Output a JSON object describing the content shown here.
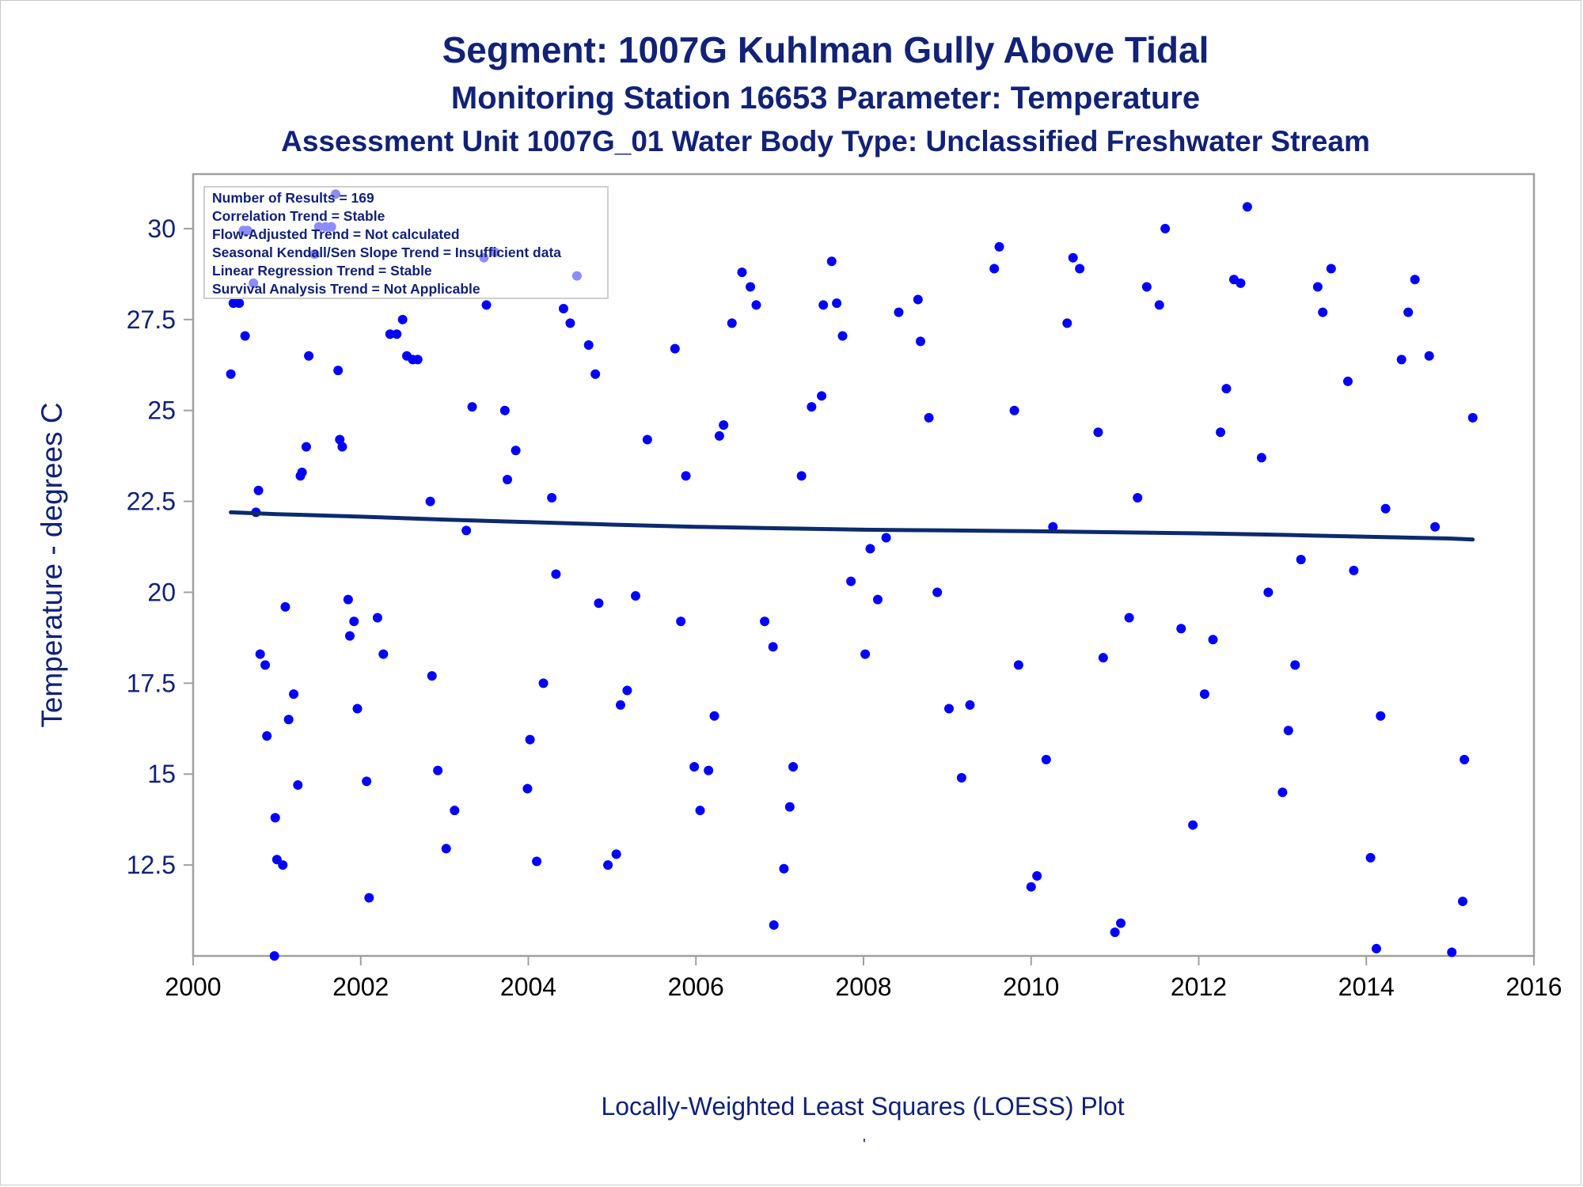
{
  "titles": {
    "line1": "Segment: 1007G  Kuhlman Gully Above Tidal",
    "line2": "Monitoring Station 16653 Parameter: Temperature",
    "line3": "Assessment Unit 1007G_01   Water Body Type: Unclassified Freshwater Stream"
  },
  "footnote": "Locally-Weighted Least Squares (LOESS) Plot",
  "footnote_mark": "'",
  "colors": {
    "text": "#112277",
    "points": "#0000ff",
    "trend": "#0c2a6e",
    "frame": "#a0a0a0"
  },
  "chart_data": {
    "type": "scatter",
    "ylabel": "Temperature - degrees C",
    "xlabel": "",
    "xlim": [
      2000,
      2016
    ],
    "ylim": [
      10.0,
      31.5
    ],
    "x_ticks": [
      "2000",
      "2002",
      "2004",
      "2006",
      "2008",
      "2010",
      "2012",
      "2014",
      "2016"
    ],
    "y_ticks": [
      "12.5",
      "15",
      "17.5",
      "20",
      "22.5",
      "25",
      "27.5",
      "30"
    ],
    "legend": {
      "position": "top-left",
      "lines": [
        "Number of Results = 169",
        "Correlation Trend = Stable",
        "Flow-Adjusted Trend = Not calculated",
        "Seasonal Kendall/Sen Slope Trend = Insufficient data",
        "Linear Regression Trend = Stable",
        "Survival Analysis Trend = Not Applicable"
      ]
    },
    "series": [
      {
        "kind": "points",
        "x": [
          2000.45,
          2000.48,
          2000.55,
          2000.62,
          2000.6,
          2000.65,
          2000.72,
          2000.75,
          2000.78,
          2000.8,
          2000.86,
          2000.88,
          2000.97,
          2000.98,
          2001.0,
          2001.07,
          2001.1,
          2001.14,
          2001.2,
          2001.25,
          2001.28,
          2001.3,
          2001.35,
          2001.38,
          2001.45,
          2001.5,
          2001.58,
          2001.65,
          2001.7,
          2001.73,
          2001.75,
          2001.78,
          2001.85,
          2001.87,
          2001.92,
          2001.96,
          2002.07,
          2002.1,
          2002.2,
          2002.27,
          2002.35,
          2002.43,
          2002.5,
          2002.55,
          2002.62,
          2002.68,
          2002.83,
          2002.85,
          2002.92,
          2003.02,
          2003.12,
          2003.26,
          2003.33,
          2003.47,
          2003.5,
          2003.6,
          2003.72,
          2003.75,
          2003.85,
          2003.99,
          2004.02,
          2004.1,
          2004.18,
          2004.28,
          2004.33,
          2004.42,
          2004.5,
          2004.58,
          2004.72,
          2004.8,
          2004.84,
          2004.95,
          2005.05,
          2005.1,
          2005.18,
          2005.28,
          2005.42,
          2005.75,
          2005.82,
          2005.88,
          2005.98,
          2006.05,
          2006.15,
          2006.22,
          2006.28,
          2006.33,
          2006.43,
          2006.55,
          2006.65,
          2006.72,
          2006.82,
          2006.92,
          2006.93,
          2007.05,
          2007.12,
          2007.16,
          2007.26,
          2007.38,
          2007.5,
          2007.52,
          2007.62,
          2007.68,
          2007.75,
          2007.85,
          2008.02,
          2008.08,
          2008.17,
          2008.27,
          2008.42,
          2008.65,
          2008.68,
          2008.78,
          2008.88,
          2009.02,
          2009.17,
          2009.27,
          2009.56,
          2009.62,
          2009.8,
          2009.85,
          2010.0,
          2010.07,
          2010.18,
          2010.26,
          2010.43,
          2010.5,
          2010.58,
          2010.8,
          2010.86,
          2011.0,
          2011.07,
          2011.17,
          2011.27,
          2011.38,
          2011.53,
          2011.6,
          2011.79,
          2011.93,
          2012.07,
          2012.17,
          2012.26,
          2012.33,
          2012.42,
          2012.5,
          2012.58,
          2012.75,
          2012.83,
          2013.0,
          2013.07,
          2013.15,
          2013.22,
          2013.42,
          2013.48,
          2013.58,
          2013.78,
          2013.85,
          2014.05,
          2014.12,
          2014.17,
          2014.23,
          2014.42,
          2014.5,
          2014.58,
          2014.75,
          2014.82,
          2015.02,
          2015.15,
          2015.17,
          2015.27
        ],
        "y": [
          26.0,
          27.95,
          27.95,
          27.05,
          29.95,
          29.95,
          28.5,
          22.2,
          22.8,
          18.3,
          18.0,
          16.05,
          10.0,
          13.8,
          12.65,
          12.5,
          19.6,
          16.5,
          17.2,
          14.7,
          23.2,
          23.3,
          24.0,
          26.5,
          29.3,
          30.05,
          30.05,
          30.05,
          30.95,
          26.1,
          24.2,
          24.0,
          19.8,
          18.8,
          19.2,
          16.8,
          14.8,
          11.6,
          19.3,
          18.3,
          27.1,
          27.1,
          27.5,
          26.5,
          26.4,
          26.4,
          22.5,
          17.7,
          15.1,
          12.95,
          14.0,
          21.7,
          25.1,
          29.2,
          27.9,
          29.35,
          25.0,
          23.1,
          23.9,
          14.6,
          15.95,
          12.6,
          17.5,
          22.6,
          20.5,
          27.8,
          27.4,
          28.7,
          26.8,
          26.0,
          19.7,
          12.5,
          12.8,
          16.9,
          17.3,
          19.9,
          24.2,
          26.7,
          19.2,
          23.2,
          15.2,
          14.0,
          15.1,
          16.6,
          24.3,
          24.6,
          27.4,
          28.8,
          28.4,
          27.9,
          19.2,
          18.5,
          10.85,
          12.4,
          14.1,
          15.2,
          23.2,
          25.1,
          25.4,
          27.9,
          29.1,
          27.95,
          27.05,
          20.3,
          18.3,
          21.2,
          19.8,
          21.5,
          27.7,
          28.05,
          26.9,
          24.8,
          20.0,
          16.8,
          14.9,
          16.9,
          28.9,
          29.5,
          25.0,
          18.0,
          11.9,
          12.2,
          15.4,
          21.8,
          27.4,
          29.2,
          28.9,
          24.4,
          18.2,
          10.65,
          10.9,
          19.3,
          22.6,
          28.4,
          27.9,
          30.0,
          19.0,
          13.6,
          17.2,
          18.7,
          24.4,
          25.6,
          28.6,
          28.5,
          30.6,
          23.7,
          20.0,
          14.5,
          16.2,
          18.0,
          20.9,
          28.4,
          27.7,
          28.9,
          25.8,
          20.6,
          12.7,
          10.2,
          16.6,
          22.3,
          26.4,
          27.7,
          28.6,
          26.5,
          21.8,
          10.1,
          11.5,
          15.4,
          24.8
        ]
      },
      {
        "kind": "line",
        "name": "",
        "x": [
          2000.45,
          2001.0,
          2002.0,
          2003.0,
          2004.0,
          2005.0,
          2006.0,
          2007.0,
          2008.0,
          2009.0,
          2010.0,
          2011.0,
          2012.0,
          2013.0,
          2014.0,
          2015.0,
          2015.27
        ],
        "y": [
          22.2,
          22.15,
          22.08,
          22.0,
          21.93,
          21.86,
          21.8,
          21.76,
          21.72,
          21.7,
          21.68,
          21.65,
          21.62,
          21.58,
          21.53,
          21.48,
          21.45
        ]
      }
    ]
  }
}
